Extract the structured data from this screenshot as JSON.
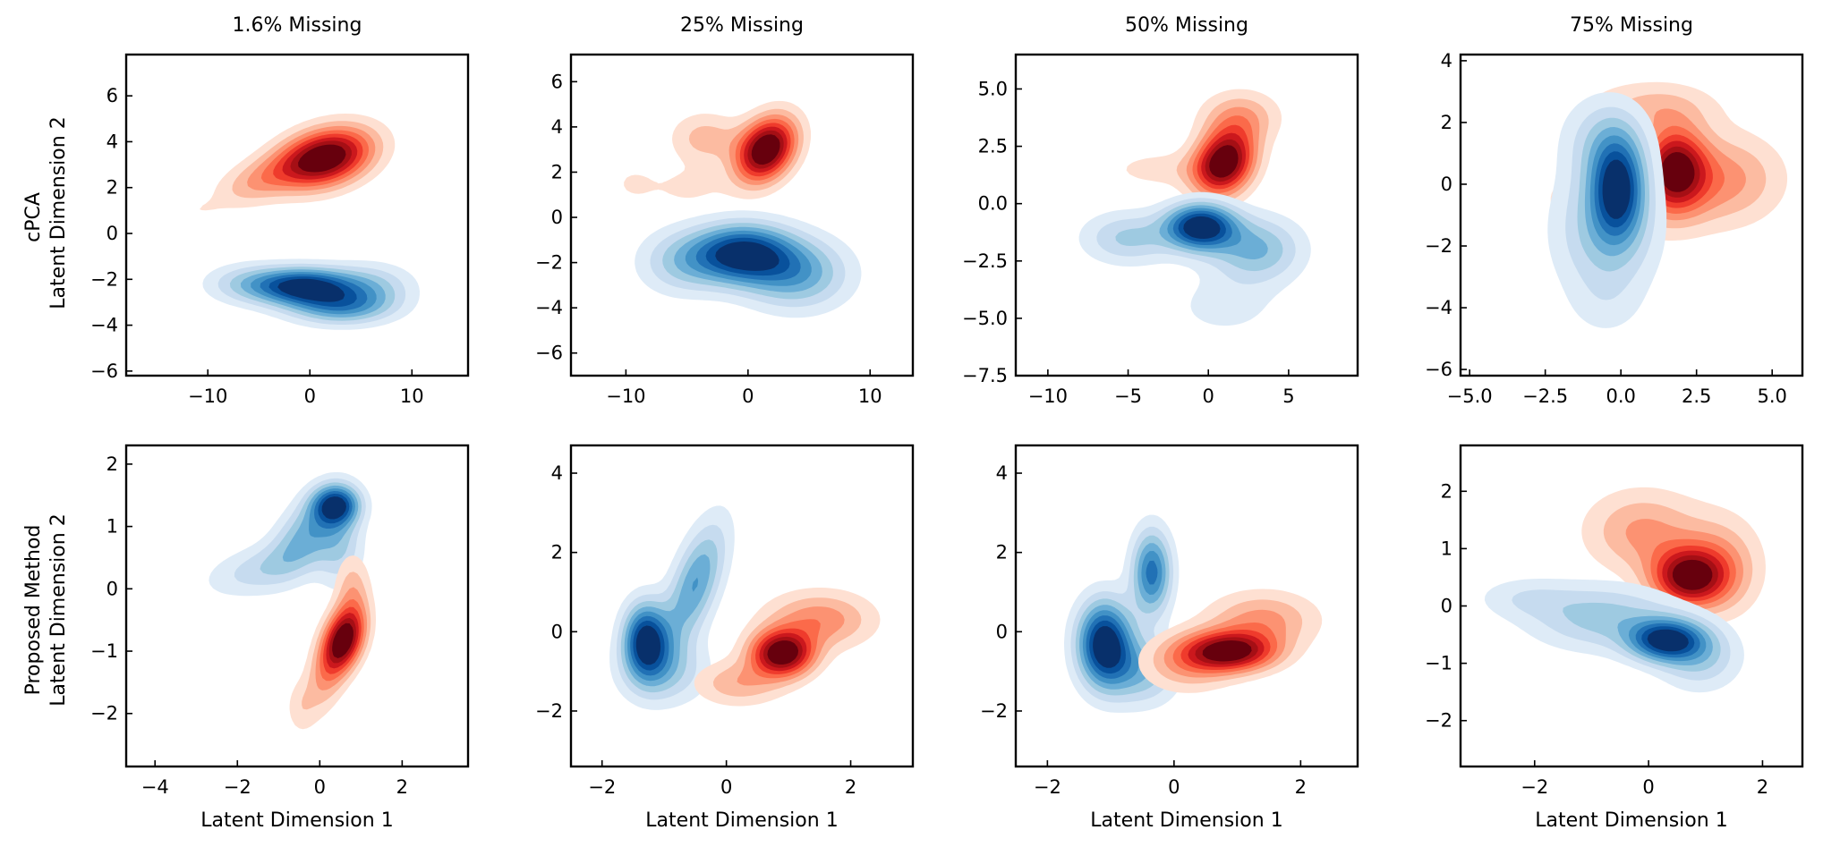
{
  "figure": {
    "col_titles": [
      "1.6% Missing",
      "25% Missing",
      "50% Missing",
      "75% Missing"
    ],
    "row_labels": [
      {
        "line1": "cPCA",
        "line2": "Latent Dimension 2"
      },
      {
        "line1": "Proposed Method",
        "line2": "Latent Dimension 2"
      }
    ],
    "xlabel": "Latent Dimension 1",
    "colors": {
      "blues": [
        "#deebf7",
        "#c6dbef",
        "#9ecae1",
        "#6baed6",
        "#4292c6",
        "#2171b5",
        "#08519c",
        "#08306b"
      ],
      "reds": [
        "#fee0d2",
        "#fcbba1",
        "#fc9272",
        "#fb6a4a",
        "#ef3b2c",
        "#cb181d",
        "#a50f15",
        "#67000d"
      ]
    }
  },
  "chart_data": [
    {
      "type": "contour",
      "row": 0,
      "col": 0,
      "title": "1.6% Missing",
      "xlabel": "",
      "ylabel": "Latent Dimension 2",
      "xlim": [
        -18,
        15.5
      ],
      "ylim": [
        -6.2,
        7.8
      ],
      "xticks": [
        -10,
        0,
        10
      ],
      "xticklabels": [
        "−10",
        "0",
        "10"
      ],
      "yticks": [
        -6,
        -4,
        -2,
        0,
        2,
        4,
        6
      ],
      "yticklabels": [
        "−6",
        "−4",
        "−2",
        "0",
        "2",
        "4",
        "6"
      ],
      "series": [
        {
          "name": "",
          "colormap": "Reds",
          "components": [
            {
              "mx": 1.5,
              "my": 3.3,
              "sx": 3.2,
              "sy": 0.9,
              "rho": 0.3,
              "w": 1.0
            },
            {
              "mx": -5.0,
              "my": 2.3,
              "sx": 3.0,
              "sy": 0.8,
              "rho": 0.5,
              "w": 0.28
            },
            {
              "mx": -11.0,
              "my": 1.0,
              "sx": 1.6,
              "sy": 0.35,
              "rho": 0.3,
              "w": 0.07
            },
            {
              "mx": 1.0,
              "my": -0.5,
              "sx": 1.0,
              "sy": 0.25,
              "rho": 0.0,
              "w": 0.06
            }
          ]
        },
        {
          "name": "",
          "colormap": "Blues",
          "components": [
            {
              "mx": -0.5,
              "my": -2.3,
              "sx": 3.2,
              "sy": 0.55,
              "rho": 0.0,
              "w": 1.0
            },
            {
              "mx": 3.0,
              "my": -3.2,
              "sx": 3.5,
              "sy": 0.55,
              "rho": 0.0,
              "w": 0.6
            },
            {
              "mx": -6.0,
              "my": -2.2,
              "sx": 3.0,
              "sy": 0.6,
              "rho": 0.0,
              "w": 0.35
            },
            {
              "mx": 6.0,
              "my": -2.3,
              "sx": 3.0,
              "sy": 0.7,
              "rho": 0.0,
              "w": 0.35
            }
          ]
        }
      ]
    },
    {
      "type": "contour",
      "row": 0,
      "col": 1,
      "title": "25% Missing",
      "xlabel": "",
      "ylabel": "",
      "xlim": [
        -14.5,
        13.5
      ],
      "ylim": [
        -7,
        7.2
      ],
      "xticks": [
        -10,
        0,
        10
      ],
      "xticklabels": [
        "−10",
        "0",
        "10"
      ],
      "yticks": [
        -6,
        -4,
        -2,
        0,
        2,
        4,
        6
      ],
      "yticklabels": [
        "−6",
        "−4",
        "−2",
        "0",
        "2",
        "4",
        "6"
      ],
      "series": [
        {
          "name": "",
          "colormap": "Reds",
          "components": [
            {
              "mx": 1.5,
              "my": 3.0,
              "sx": 1.7,
              "sy": 1.0,
              "rho": 0.3,
              "w": 1.0
            },
            {
              "mx": -3.5,
              "my": 3.5,
              "sx": 2.0,
              "sy": 0.8,
              "rho": 0.0,
              "w": 0.25
            },
            {
              "mx": -9.5,
              "my": 1.5,
              "sx": 1.3,
              "sy": 0.6,
              "rho": 0.0,
              "w": 0.1
            },
            {
              "mx": -5.0,
              "my": 1.3,
              "sx": 2.5,
              "sy": 0.7,
              "rho": 0.0,
              "w": 0.12
            }
          ]
        },
        {
          "name": "",
          "colormap": "Blues",
          "components": [
            {
              "mx": -0.5,
              "my": -1.6,
              "sx": 2.8,
              "sy": 0.9,
              "rho": 0.0,
              "w": 1.0
            },
            {
              "mx": 4.0,
              "my": -2.5,
              "sx": 3.0,
              "sy": 1.1,
              "rho": 0.0,
              "w": 0.55
            },
            {
              "mx": -5.5,
              "my": -2.0,
              "sx": 2.5,
              "sy": 1.0,
              "rho": 0.0,
              "w": 0.35
            }
          ]
        }
      ]
    },
    {
      "type": "contour",
      "row": 0,
      "col": 2,
      "title": "50% Missing",
      "xlabel": "",
      "ylabel": "",
      "xlim": [
        -12,
        9.3
      ],
      "ylim": [
        -7.5,
        6.5
      ],
      "xticks": [
        -10,
        -5,
        0,
        5
      ],
      "xticklabels": [
        "−10",
        "−5",
        "0",
        "5"
      ],
      "yticks": [
        -7.5,
        -5,
        -2.5,
        0,
        2.5,
        5
      ],
      "yticklabels": [
        "−7.5",
        "−5.0",
        "−2.5",
        "0.0",
        "2.5",
        "5.0"
      ],
      "series": [
        {
          "name": "",
          "colormap": "Reds",
          "components": [
            {
              "mx": 1.0,
              "my": 1.8,
              "sx": 1.3,
              "sy": 1.0,
              "rho": 0.2,
              "w": 1.0
            },
            {
              "mx": 2.0,
              "my": 3.8,
              "sx": 1.7,
              "sy": 0.8,
              "rho": 0.0,
              "w": 0.3
            },
            {
              "mx": -3.0,
              "my": 1.5,
              "sx": 2.5,
              "sy": 0.6,
              "rho": 0.0,
              "w": 0.15
            },
            {
              "mx": -8.0,
              "my": 2.5,
              "sx": 0.5,
              "sy": 0.3,
              "rho": 0.0,
              "w": 0.06
            }
          ]
        },
        {
          "name": "",
          "colormap": "Blues",
          "components": [
            {
              "mx": -0.5,
              "my": -1.0,
              "sx": 1.5,
              "sy": 0.7,
              "rho": 0.0,
              "w": 1.0
            },
            {
              "mx": 3.0,
              "my": -2.0,
              "sx": 2.0,
              "sy": 1.0,
              "rho": 0.0,
              "w": 0.45
            },
            {
              "mx": -5.0,
              "my": -1.5,
              "sx": 2.0,
              "sy": 0.8,
              "rho": 0.0,
              "w": 0.35
            },
            {
              "mx": 1.0,
              "my": -4.5,
              "sx": 2.5,
              "sy": 1.0,
              "rho": 0.0,
              "w": 0.15
            }
          ]
        }
      ]
    },
    {
      "type": "contour",
      "row": 0,
      "col": 3,
      "title": "75% Missing",
      "xlabel": "",
      "ylabel": "",
      "xlim": [
        -5.3,
        6.0
      ],
      "ylim": [
        -6.2,
        4.2
      ],
      "xticks": [
        -5,
        -2.5,
        0,
        2.5,
        5
      ],
      "xticklabels": [
        "−5.0",
        "−2.5",
        "0.0",
        "2.5",
        "5.0"
      ],
      "yticks": [
        -6,
        -4,
        -2,
        0,
        2,
        4
      ],
      "yticklabels": [
        "−6",
        "−4",
        "−2",
        "0",
        "2",
        "4"
      ],
      "series": [
        {
          "name": "",
          "colormap": "Reds",
          "components": [
            {
              "mx": 1.8,
              "my": 0.5,
              "sx": 0.7,
              "sy": 0.9,
              "rho": 0.0,
              "w": 1.0
            },
            {
              "mx": 3.5,
              "my": 0.2,
              "sx": 1.3,
              "sy": 1.0,
              "rho": 0.0,
              "w": 0.4
            },
            {
              "mx": 1.0,
              "my": 2.5,
              "sx": 1.5,
              "sy": 0.6,
              "rho": 0.0,
              "w": 0.3
            },
            {
              "mx": 0.0,
              "my": -0.5,
              "sx": 2.0,
              "sy": 1.0,
              "rho": 0.0,
              "w": 0.25
            }
          ]
        },
        {
          "name": "",
          "colormap": "Blues",
          "components": [
            {
              "mx": -0.1,
              "my": -0.1,
              "sx": 0.6,
              "sy": 1.1,
              "rho": 0.0,
              "w": 1.0
            },
            {
              "mx": -0.5,
              "my": -1.5,
              "sx": 1.2,
              "sy": 1.5,
              "rho": 0.0,
              "w": 0.5
            },
            {
              "mx": -0.5,
              "my": 1.5,
              "sx": 1.0,
              "sy": 1.0,
              "rho": 0.0,
              "w": 0.35
            },
            {
              "mx": -0.5,
              "my": -4.0,
              "sx": 0.9,
              "sy": 0.8,
              "rho": 0.0,
              "w": 0.12
            }
          ]
        }
      ]
    },
    {
      "type": "contour",
      "row": 1,
      "col": 0,
      "title": "",
      "xlabel": "Latent Dimension 1",
      "ylabel": "Latent Dimension 2",
      "xlim": [
        -4.7,
        3.6
      ],
      "ylim": [
        -2.85,
        2.3
      ],
      "xticks": [
        -4,
        -2,
        0,
        2
      ],
      "xticklabels": [
        "−4",
        "−2",
        "0",
        "2"
      ],
      "yticks": [
        -2,
        -1,
        0,
        1,
        2
      ],
      "yticklabels": [
        "−2",
        "−1",
        "0",
        "1",
        "2"
      ],
      "series": [
        {
          "name": "",
          "colormap": "Blues",
          "components": [
            {
              "mx": 0.4,
              "my": 1.35,
              "sx": 0.4,
              "sy": 0.22,
              "rho": 0.0,
              "w": 1.0
            },
            {
              "mx": -0.3,
              "my": 0.9,
              "sx": 0.6,
              "sy": 0.45,
              "rho": 0.5,
              "w": 0.6
            },
            {
              "mx": -1.5,
              "my": 0.3,
              "sx": 0.9,
              "sy": 0.3,
              "rho": 0.4,
              "w": 0.35
            },
            {
              "mx": 0.5,
              "my": 0.7,
              "sx": 0.4,
              "sy": 0.5,
              "rho": 0.0,
              "w": 0.4
            }
          ]
        },
        {
          "name": "",
          "colormap": "Reds",
          "components": [
            {
              "mx": 0.6,
              "my": -0.8,
              "sx": 0.35,
              "sy": 0.35,
              "rho": 0.3,
              "w": 1.0
            },
            {
              "mx": 0.2,
              "my": -1.3,
              "sx": 0.4,
              "sy": 0.5,
              "rho": 0.5,
              "w": 0.4
            },
            {
              "mx": -0.5,
              "my": -1.9,
              "sx": 0.25,
              "sy": 0.3,
              "rho": 0.0,
              "w": 0.15
            },
            {
              "mx": 0.8,
              "my": 0.0,
              "sx": 0.3,
              "sy": 0.4,
              "rho": 0.0,
              "w": 0.3
            }
          ]
        }
      ]
    },
    {
      "type": "contour",
      "row": 1,
      "col": 1,
      "title": "",
      "xlabel": "Latent Dimension 1",
      "ylabel": "",
      "xlim": [
        -2.5,
        3.0
      ],
      "ylim": [
        -3.4,
        4.7
      ],
      "xticks": [
        -2,
        0,
        2
      ],
      "xticklabels": [
        "−2",
        "0",
        "2"
      ],
      "yticks": [
        -2,
        0,
        2,
        4
      ],
      "yticklabels": [
        "−2",
        "0",
        "2",
        "4"
      ],
      "series": [
        {
          "name": "",
          "colormap": "Blues",
          "components": [
            {
              "mx": -1.3,
              "my": -0.2,
              "sx": 0.25,
              "sy": 0.65,
              "rho": 0.0,
              "w": 1.0
            },
            {
              "mx": -0.5,
              "my": 1.2,
              "sx": 0.35,
              "sy": 1.1,
              "rho": 0.6,
              "w": 0.6
            },
            {
              "mx": -1.0,
              "my": -1.0,
              "sx": 0.5,
              "sy": 0.6,
              "rho": 0.0,
              "w": 0.35
            }
          ]
        },
        {
          "name": "",
          "colormap": "Reds",
          "components": [
            {
              "mx": 0.9,
              "my": -0.55,
              "sx": 0.35,
              "sy": 0.4,
              "rho": 0.0,
              "w": 1.0
            },
            {
              "mx": 1.5,
              "my": 0.3,
              "sx": 0.6,
              "sy": 0.5,
              "rho": 0.0,
              "w": 0.4
            },
            {
              "mx": 0.2,
              "my": -1.3,
              "sx": 0.5,
              "sy": 0.4,
              "rho": 0.0,
              "w": 0.3
            }
          ]
        }
      ]
    },
    {
      "type": "contour",
      "row": 1,
      "col": 2,
      "title": "",
      "xlabel": "Latent Dimension 1",
      "ylabel": "",
      "xlim": [
        -2.5,
        2.9
      ],
      "ylim": [
        -3.4,
        4.7
      ],
      "xticks": [
        -2,
        0,
        2
      ],
      "xticklabels": [
        "−2",
        "0",
        "2"
      ],
      "yticks": [
        -2,
        0,
        2,
        4
      ],
      "yticklabels": [
        "−2",
        "0",
        "2",
        "4"
      ],
      "series": [
        {
          "name": "",
          "colormap": "Blues",
          "components": [
            {
              "mx": -1.1,
              "my": -0.3,
              "sx": 0.3,
              "sy": 0.75,
              "rho": 0.0,
              "w": 1.0
            },
            {
              "mx": -0.35,
              "my": 1.5,
              "sx": 0.22,
              "sy": 0.75,
              "rho": 0.0,
              "w": 0.7
            },
            {
              "mx": -0.5,
              "my": -1.0,
              "sx": 0.4,
              "sy": 0.6,
              "rho": 0.0,
              "w": 0.4
            }
          ]
        },
        {
          "name": "",
          "colormap": "Reds",
          "components": [
            {
              "mx": 0.9,
              "my": -0.5,
              "sx": 0.5,
              "sy": 0.35,
              "rho": 0.0,
              "w": 1.0
            },
            {
              "mx": 1.4,
              "my": 0.3,
              "sx": 0.6,
              "sy": 0.5,
              "rho": 0.0,
              "w": 0.4
            },
            {
              "mx": 0.2,
              "my": -0.8,
              "sx": 0.5,
              "sy": 0.5,
              "rho": 0.0,
              "w": 0.35
            }
          ]
        }
      ]
    },
    {
      "type": "contour",
      "row": 1,
      "col": 3,
      "title": "",
      "xlabel": "Latent Dimension 1",
      "ylabel": "",
      "xlim": [
        -3.3,
        2.7
      ],
      "ylim": [
        -2.8,
        2.8
      ],
      "xticks": [
        -2,
        0,
        2
      ],
      "xticklabels": [
        "−2",
        "0",
        "2"
      ],
      "yticks": [
        -2,
        -1,
        0,
        1,
        2
      ],
      "yticklabels": [
        "−2",
        "−1",
        "0",
        "1",
        "2"
      ],
      "series": [
        {
          "name": "",
          "colormap": "Reds",
          "components": [
            {
              "mx": 0.7,
              "my": 0.5,
              "sx": 0.45,
              "sy": 0.35,
              "rho": 0.0,
              "w": 1.0
            },
            {
              "mx": -0.1,
              "my": 1.3,
              "sx": 0.7,
              "sy": 0.5,
              "rho": 0.0,
              "w": 0.4
            },
            {
              "mx": 1.3,
              "my": 0.7,
              "sx": 0.5,
              "sy": 0.6,
              "rho": 0.0,
              "w": 0.35
            }
          ]
        },
        {
          "name": "",
          "colormap": "Blues",
          "components": [
            {
              "mx": 0.3,
              "my": -0.6,
              "sx": 0.45,
              "sy": 0.25,
              "rho": 0.0,
              "w": 1.0
            },
            {
              "mx": -0.8,
              "my": -0.2,
              "sx": 0.9,
              "sy": 0.4,
              "rho": 0.0,
              "w": 0.45
            },
            {
              "mx": -2.2,
              "my": 0.15,
              "sx": 0.6,
              "sy": 0.25,
              "rho": 0.0,
              "w": 0.2
            },
            {
              "mx": 0.9,
              "my": -0.9,
              "sx": 0.5,
              "sy": 0.4,
              "rho": 0.0,
              "w": 0.4
            }
          ]
        }
      ]
    }
  ]
}
